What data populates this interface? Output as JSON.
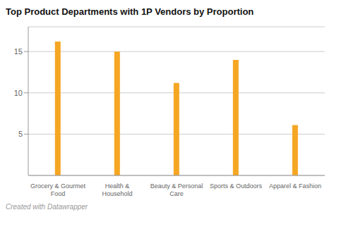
{
  "chart_data": {
    "type": "bar",
    "title": "Top Product Departments with 1P Vendors by Proportion",
    "categories": [
      "Grocery & Gourmet\nFood",
      "Health &\nHousehold",
      "Beauty & Personal\nCare",
      "Sports & Outdoors",
      "Apparel & Fashion"
    ],
    "values": [
      16.2,
      15.0,
      11.2,
      14.0,
      6.1
    ],
    "color": "#F5A623",
    "ylim": [
      0,
      18
    ],
    "yticks": [
      5,
      10,
      15
    ],
    "grid": true,
    "annotations": [
      "Created with Datawrapper"
    ]
  }
}
